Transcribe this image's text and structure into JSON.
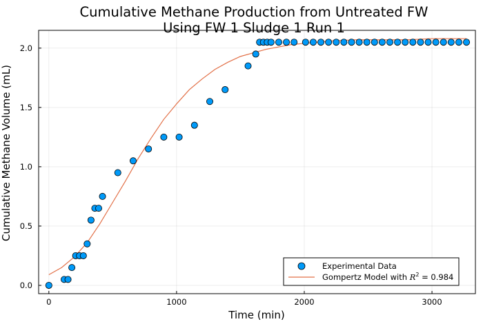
{
  "chart_data": {
    "type": "scatter",
    "title_lines": [
      "Cumulative Methane Production from Untreated FW",
      "Using FW 1 Sludge 1 Run 1"
    ],
    "xlabel": "Time (min)",
    "ylabel": "Cumulative Methane Volume (mL)",
    "xlim": [
      -80,
      3340
    ],
    "ylim": [
      -0.07,
      2.15
    ],
    "x_ticks": [
      0,
      1000,
      2000,
      3000
    ],
    "x_tick_labels": [
      "0",
      "1000",
      "2000",
      "3000"
    ],
    "y_ticks": [
      0.0,
      0.5,
      1.0,
      1.5,
      2.0
    ],
    "y_tick_labels": [
      "0.0",
      "0.5",
      "1.0",
      "1.5",
      "2.0"
    ],
    "grid": true,
    "legend_position": "bottom-right",
    "series": [
      {
        "name": "Experimental Data",
        "kind": "scatter",
        "color": "#009af9",
        "x": [
          0,
          120,
          150,
          180,
          210,
          240,
          270,
          300,
          330,
          360,
          390,
          420,
          540,
          660,
          780,
          900,
          1020,
          1140,
          1260,
          1380,
          1560,
          1620,
          1650,
          1680,
          1710,
          1740,
          1800,
          1860,
          1920,
          2010,
          2070,
          2130,
          2190,
          2250,
          2310,
          2370,
          2430,
          2490,
          2550,
          2610,
          2670,
          2730,
          2790,
          2850,
          2910,
          2970,
          3030,
          3090,
          3150,
          3210,
          3270
        ],
        "y": [
          0.0,
          0.05,
          0.05,
          0.15,
          0.25,
          0.25,
          0.25,
          0.35,
          0.55,
          0.65,
          0.65,
          0.75,
          0.95,
          1.05,
          1.15,
          1.25,
          1.25,
          1.35,
          1.55,
          1.65,
          1.85,
          1.95,
          2.05,
          2.05,
          2.05,
          2.05,
          2.05,
          2.05,
          2.05,
          2.05,
          2.05,
          2.05,
          2.05,
          2.05,
          2.05,
          2.05,
          2.05,
          2.05,
          2.05,
          2.05,
          2.05,
          2.05,
          2.05,
          2.05,
          2.05,
          2.05,
          2.05,
          2.05,
          2.05,
          2.05,
          2.05
        ]
      },
      {
        "name_prefix": "Gompertz Model with ",
        "r2_symbol": "R",
        "r2_exponent": "2",
        "name_suffix": " = 0.984",
        "kind": "line",
        "color": "#e26f46",
        "x": [
          0,
          100,
          200,
          300,
          400,
          500,
          600,
          700,
          800,
          900,
          1000,
          1100,
          1200,
          1300,
          1400,
          1500,
          1600,
          1700,
          1800,
          1900,
          2000,
          2100,
          2200,
          2400,
          2600,
          2800,
          3000,
          3200,
          3270
        ],
        "y": [
          0.09,
          0.15,
          0.24,
          0.36,
          0.52,
          0.7,
          0.88,
          1.07,
          1.24,
          1.4,
          1.53,
          1.65,
          1.74,
          1.82,
          1.88,
          1.93,
          1.96,
          1.99,
          2.01,
          2.03,
          2.04,
          2.05,
          2.06,
          2.07,
          2.07,
          2.07,
          2.08,
          2.08,
          2.08
        ]
      }
    ]
  }
}
